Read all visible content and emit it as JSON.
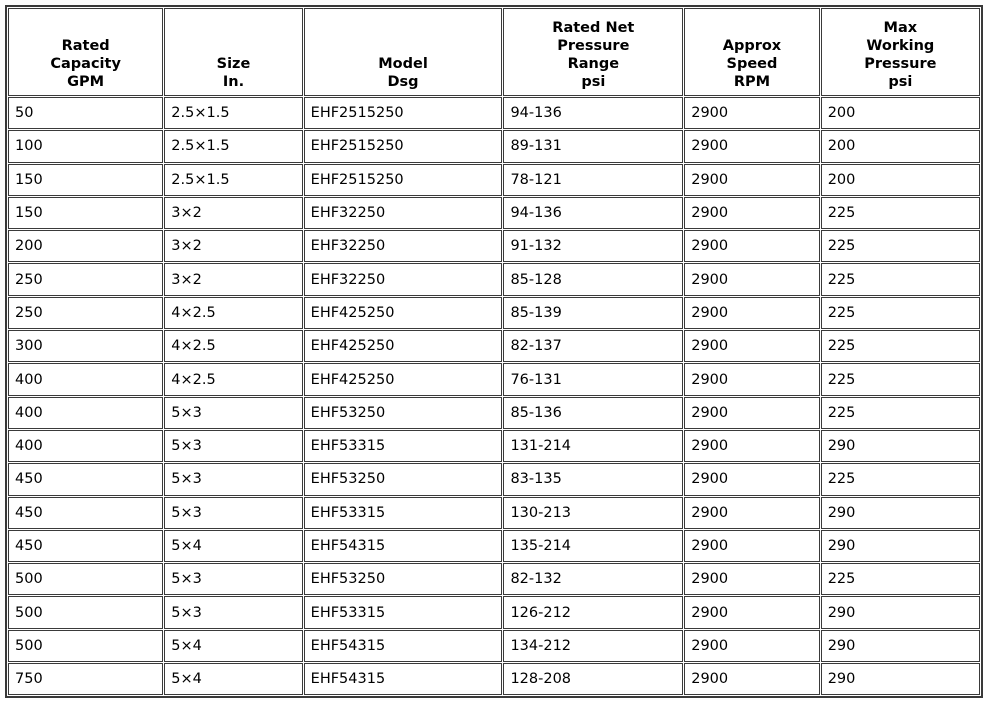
{
  "table": {
    "headers": [
      [
        "Rated",
        "Capacity",
        "GPM"
      ],
      [
        "Size",
        "In."
      ],
      [
        "Model",
        "Dsg"
      ],
      [
        "Rated Net",
        "Pressure",
        "Range",
        "psi"
      ],
      [
        "Approx",
        "Speed",
        "RPM"
      ],
      [
        "Max",
        "Working",
        "Pressure",
        "psi"
      ]
    ],
    "rows": [
      [
        "50",
        "2.5×1.5",
        "EHF2515250",
        "94-136",
        "2900",
        "200"
      ],
      [
        "100",
        "2.5×1.5",
        "EHF2515250",
        "89-131",
        "2900",
        "200"
      ],
      [
        "150",
        "2.5×1.5",
        "EHF2515250",
        "78-121",
        "2900",
        "200"
      ],
      [
        "150",
        "3×2",
        "EHF32250",
        "94-136",
        "2900",
        "225"
      ],
      [
        "200",
        "3×2",
        "EHF32250",
        "91-132",
        "2900",
        "225"
      ],
      [
        "250",
        "3×2",
        "EHF32250",
        "85-128",
        "2900",
        "225"
      ],
      [
        "250",
        "4×2.5",
        "EHF425250",
        "85-139",
        "2900",
        "225"
      ],
      [
        "300",
        "4×2.5",
        "EHF425250",
        "82-137",
        "2900",
        "225"
      ],
      [
        "400",
        "4×2.5",
        "EHF425250",
        "76-131",
        "2900",
        "225"
      ],
      [
        "400",
        "5×3",
        "EHF53250",
        "85-136",
        "2900",
        "225"
      ],
      [
        "400",
        "5×3",
        "EHF53315",
        "131-214",
        "2900",
        "290"
      ],
      [
        "450",
        "5×3",
        "EHF53250",
        "83-135",
        "2900",
        "225"
      ],
      [
        "450",
        "5×3",
        "EHF53315",
        "130-213",
        "2900",
        "290"
      ],
      [
        "450",
        "5×4",
        "EHF54315",
        "135-214",
        "2900",
        "290"
      ],
      [
        "500",
        "5×3",
        "EHF53250",
        "82-132",
        "2900",
        "225"
      ],
      [
        "500",
        "5×3",
        "EHF53315",
        "126-212",
        "2900",
        "290"
      ],
      [
        "500",
        "5×4",
        "EHF54315",
        "134-212",
        "2900",
        "290"
      ],
      [
        "750",
        "5×4",
        "EHF54315",
        "128-208",
        "2900",
        "290"
      ]
    ]
  }
}
